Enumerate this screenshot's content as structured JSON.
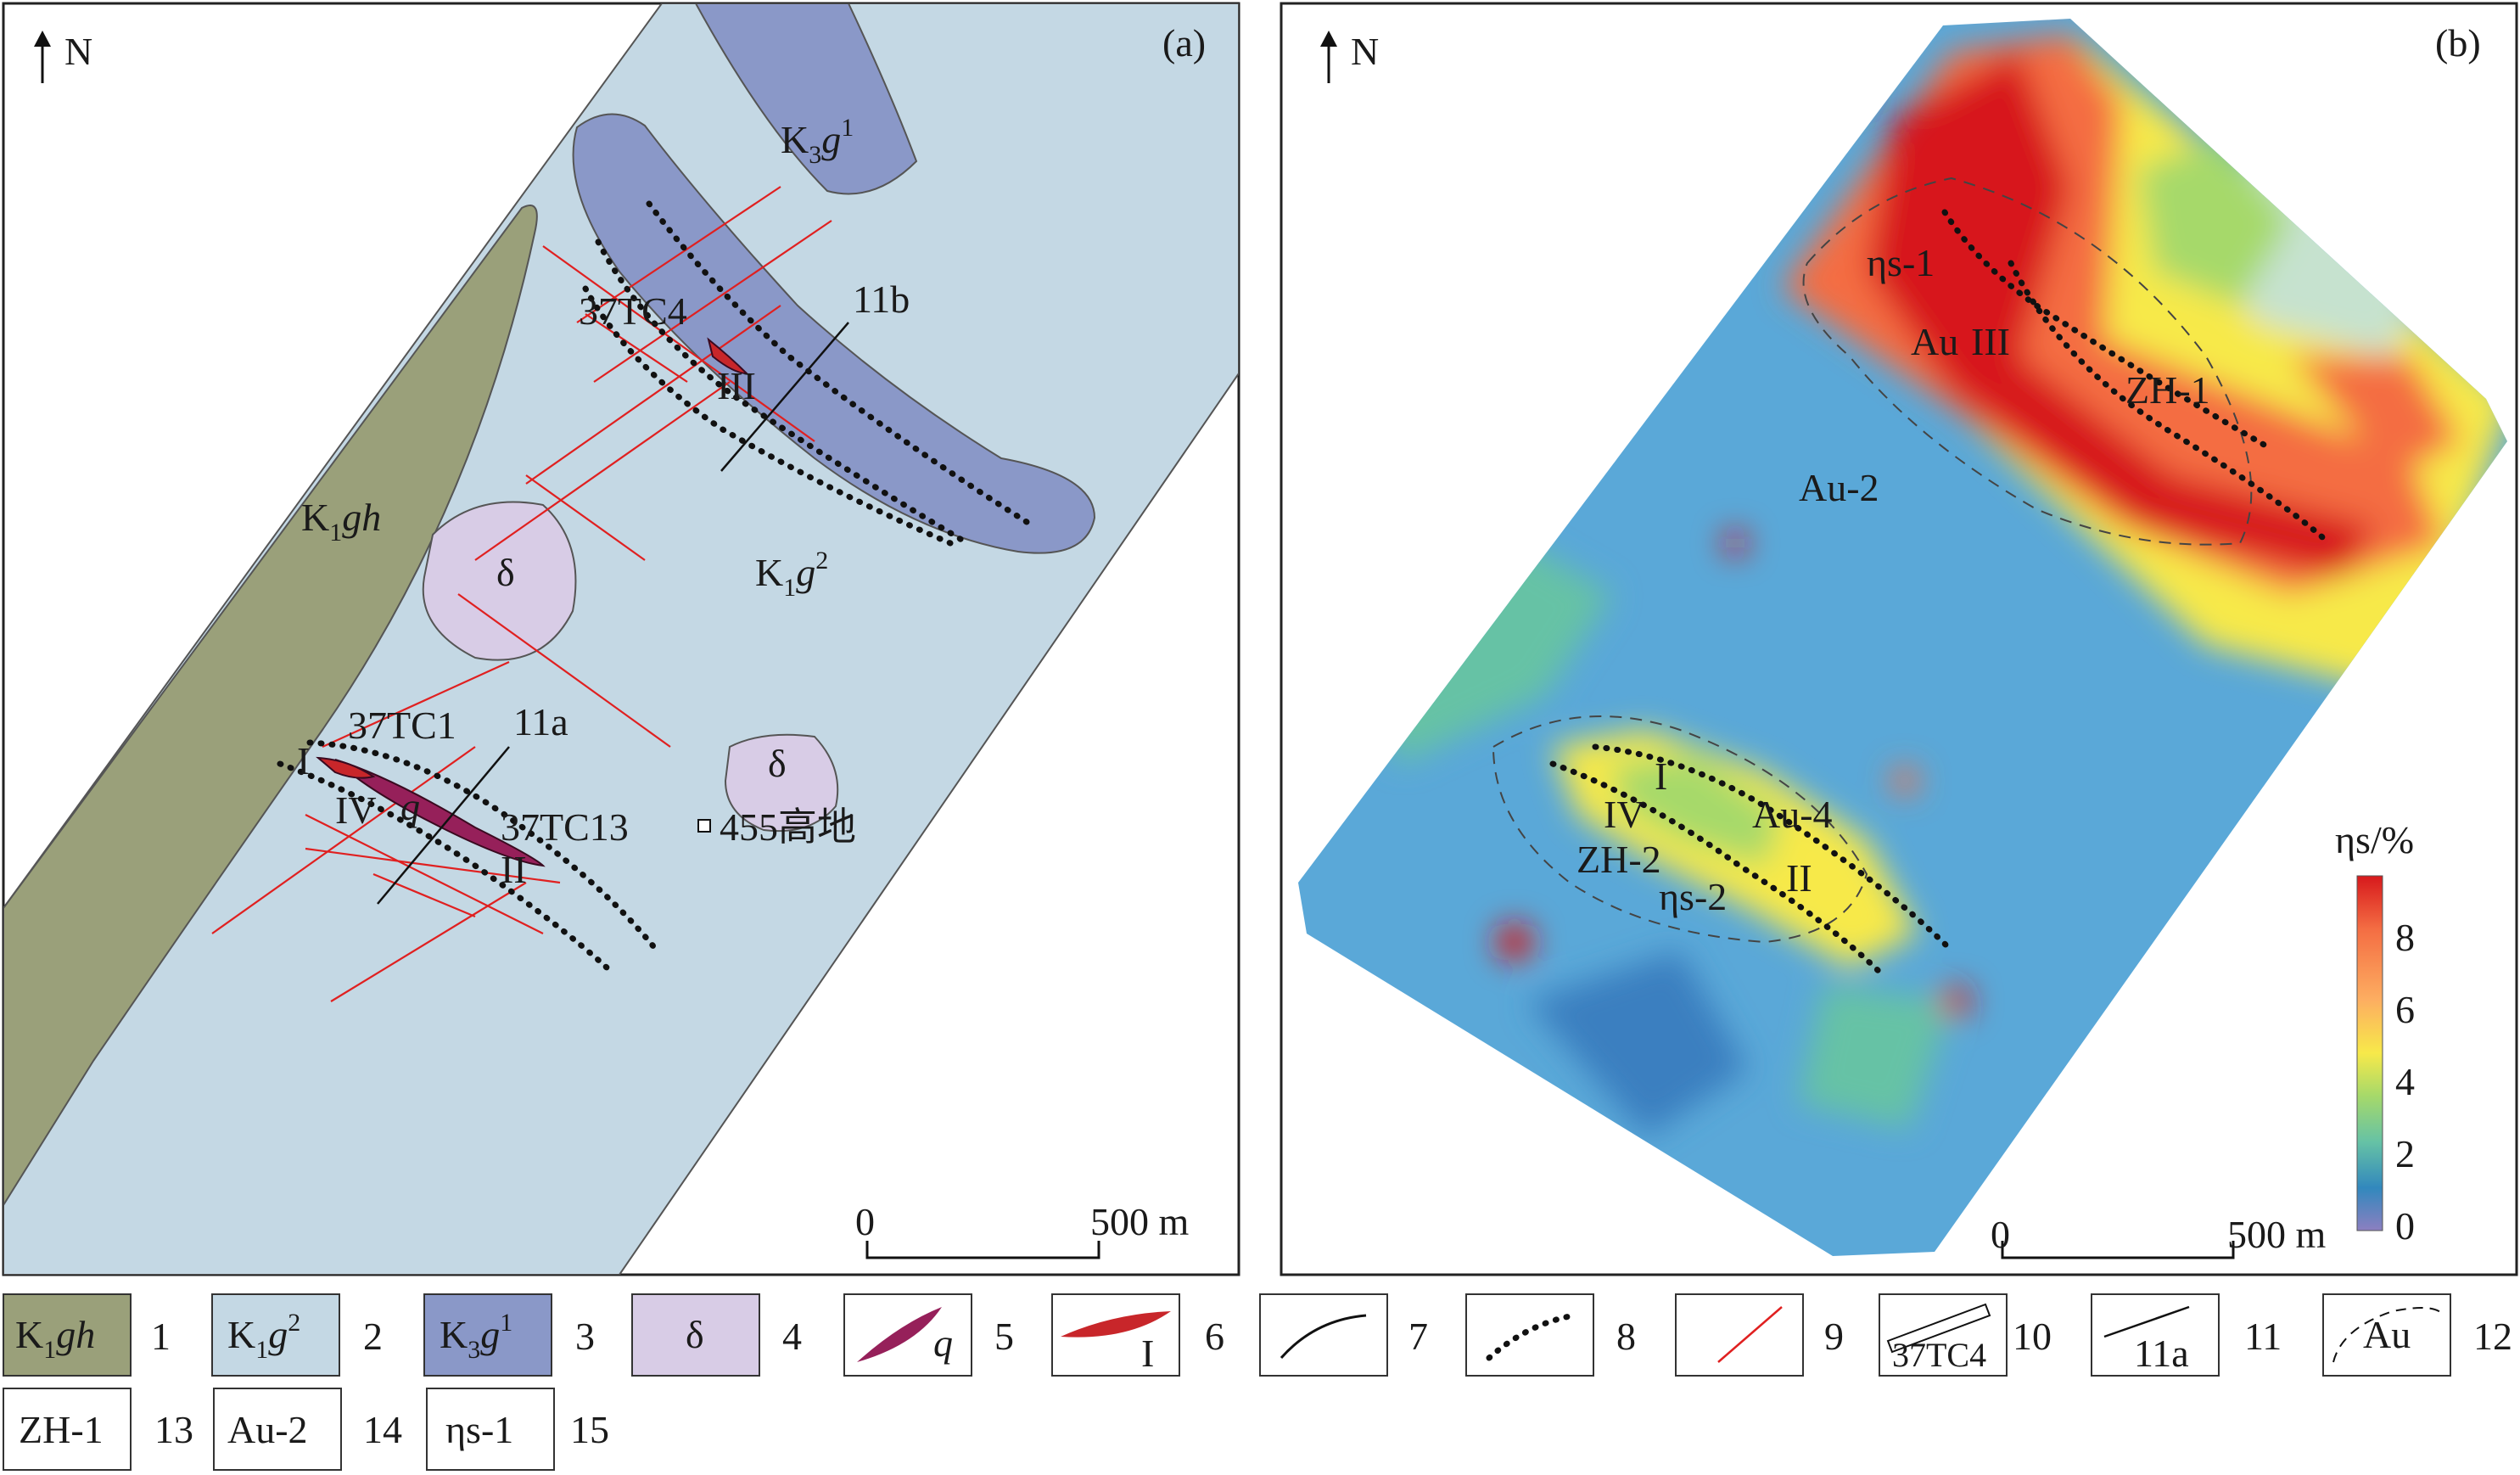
{
  "panel_a": {
    "north": "N",
    "tag": "(a)",
    "units": {
      "k1gh": {
        "main": "K",
        "sub": "1",
        "ital": "gh"
      },
      "k1g2": {
        "main": "K",
        "sub": "1",
        "ital": "g",
        "sup": "2"
      },
      "k3g1": {
        "main": "K",
        "sub": "3",
        "ital": "g",
        "sup": "1"
      }
    },
    "delta": "δ",
    "trench_labels": [
      "37TC4",
      "37TC1",
      "37TC13"
    ],
    "profile_labels": [
      "11b",
      "11a"
    ],
    "orebody_labels": [
      "III",
      "I",
      "IV",
      "II"
    ],
    "quartz_symbol": "q",
    "highland_label": "455高地",
    "scale_zero": "0",
    "scale_label": "500 m"
  },
  "panel_b": {
    "north": "N",
    "tag": "(b)",
    "anomaly_labels": [
      "ηs-1",
      "Au",
      "III",
      "ZH-1",
      "Au-2",
      "I",
      "IV",
      "Au-4",
      "ZH-2",
      "II",
      "ηs-2"
    ],
    "colorbar_title": "ηs/%",
    "colorbar_ticks": [
      "8",
      "6",
      "4",
      "2",
      "0"
    ],
    "colorbar_colors": [
      "#d7191c",
      "#f46d43",
      "#fdae61",
      "#f7e94a",
      "#a6d96a",
      "#66c2a5",
      "#3288bd",
      "#8c7fc0"
    ],
    "scale_zero": "0",
    "scale_label": "500 m"
  },
  "legend": [
    {
      "num": "1",
      "kind": "unit",
      "color": "#9aa07a",
      "label_main": "K",
      "label_sub": "1",
      "label_ital": "gh"
    },
    {
      "num": "2",
      "kind": "unit",
      "color": "#c4d8e4",
      "label_main": "K",
      "label_sub": "1",
      "label_ital": "g",
      "label_sup": "2"
    },
    {
      "num": "3",
      "kind": "unit",
      "color": "#8a98c8",
      "label_main": "K",
      "label_sub": "3",
      "label_ital": "g",
      "label_sup": "1"
    },
    {
      "num": "4",
      "kind": "unit",
      "color": "#d8cce6",
      "label_main": "δ"
    },
    {
      "num": "5",
      "kind": "lens",
      "color": "#96205a",
      "label_ital": "q"
    },
    {
      "num": "6",
      "kind": "lens",
      "color": "#c8262a",
      "label_main": "I"
    },
    {
      "num": "7",
      "kind": "curve"
    },
    {
      "num": "8",
      "kind": "dotted"
    },
    {
      "num": "9",
      "kind": "redline",
      "color": "#e02020"
    },
    {
      "num": "10",
      "kind": "trench",
      "label_main": "37TC4"
    },
    {
      "num": "11",
      "kind": "profile",
      "label_main": "11a"
    },
    {
      "num": "12",
      "kind": "anomaly",
      "label_main": "Au"
    },
    {
      "num": "13",
      "kind": "text",
      "label_main": "ZH-1"
    },
    {
      "num": "14",
      "kind": "text",
      "label_main": "Au-2"
    },
    {
      "num": "15",
      "kind": "text",
      "label_main": "ηs-1"
    }
  ]
}
